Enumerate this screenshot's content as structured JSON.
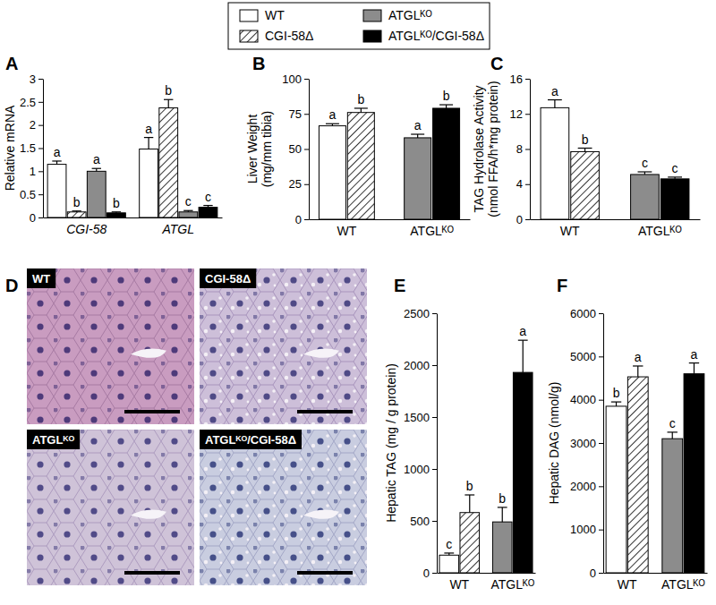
{
  "chart_data": [
    {
      "type": "bar",
      "title": "A",
      "ylabel": "Relative mRNA",
      "categories": [
        "CGI-58",
        "ATGL"
      ],
      "ylim": [
        0,
        3
      ],
      "yticks": [
        0,
        0.5,
        1,
        1.5,
        2,
        2.5,
        3
      ],
      "legend": "top",
      "series": [
        {
          "name": "WT",
          "color": "#ffffff",
          "line_style": "solid",
          "values": [
            1.15,
            1.48
          ],
          "errors": [
            0.07,
            0.25
          ],
          "letters": [
            "a",
            "a"
          ]
        },
        {
          "name": "CGI-58Δ",
          "color": "#ffffff",
          "line_style": "hatched",
          "values": [
            0.12,
            2.37
          ],
          "errors": [
            0.02,
            0.18
          ],
          "letters": [
            "b",
            "b"
          ]
        },
        {
          "name": "ATGLᴷᴼ",
          "color": "#8c8c8c",
          "line_style": "solid",
          "values": [
            1.0,
            0.12
          ],
          "errors": [
            0.06,
            0.03
          ],
          "letters": [
            "a",
            "c"
          ]
        },
        {
          "name": "ATGLᴷᴼ/CGI-58Δ",
          "color": "#000000",
          "line_style": "solid",
          "values": [
            0.1,
            0.22
          ],
          "errors": [
            0.02,
            0.04
          ],
          "letters": [
            "b",
            "c"
          ]
        }
      ]
    },
    {
      "type": "bar",
      "title": "B",
      "ylabel": [
        "Liver Weight",
        "(mg/mm tibia)"
      ],
      "categories": [
        "WT",
        "ATGLᴷᴼ"
      ],
      "ylim": [
        0,
        100
      ],
      "yticks": [
        0,
        25,
        50,
        75,
        100
      ],
      "series": [
        {
          "name": "WT",
          "color": "#ffffff",
          "line_style": "solid",
          "values": [
            66.5,
            null
          ],
          "errors": [
            1.5,
            null
          ],
          "letters": [
            "a",
            null
          ]
        },
        {
          "name": "CGI-58Δ",
          "color": "#ffffff",
          "line_style": "hatched",
          "values": [
            76,
            null
          ],
          "errors": [
            3,
            null
          ],
          "letters": [
            "b",
            null
          ]
        },
        {
          "name": "ATGLᴷᴼ",
          "color": "#8c8c8c",
          "line_style": "solid",
          "values": [
            null,
            58
          ],
          "errors": [
            null,
            2.5
          ],
          "letters": [
            null,
            "a"
          ]
        },
        {
          "name": "ATGLᴷᴼ/CGI-58Δ",
          "color": "#000000",
          "line_style": "solid",
          "values": [
            null,
            79
          ],
          "errors": [
            null,
            2.5
          ],
          "letters": [
            null,
            "b"
          ]
        }
      ]
    },
    {
      "type": "bar",
      "title": "C",
      "ylabel": [
        "TAG Hydrolase Activity",
        "(nmol FFA/h*mg protein)"
      ],
      "categories": [
        "WT",
        "ATGLᴷᴼ"
      ],
      "ylim": [
        0,
        16
      ],
      "yticks": [
        0,
        4,
        8,
        12,
        16
      ],
      "series": [
        {
          "name": "WT",
          "color": "#ffffff",
          "line_style": "solid",
          "values": [
            12.7,
            null
          ],
          "errors": [
            0.9,
            null
          ],
          "letters": [
            "a",
            null
          ]
        },
        {
          "name": "CGI-58Δ",
          "color": "#ffffff",
          "line_style": "hatched",
          "values": [
            7.7,
            null
          ],
          "errors": [
            0.4,
            null
          ],
          "letters": [
            "b",
            null
          ]
        },
        {
          "name": "ATGLᴷᴼ",
          "color": "#8c8c8c",
          "line_style": "solid",
          "values": [
            null,
            5.1
          ],
          "errors": [
            null,
            0.3
          ],
          "letters": [
            null,
            "c"
          ]
        },
        {
          "name": "ATGLᴷᴼ/CGI-58Δ",
          "color": "#000000",
          "line_style": "solid",
          "values": [
            null,
            4.6
          ],
          "errors": [
            null,
            0.2
          ],
          "letters": [
            null,
            "c"
          ]
        }
      ]
    },
    {
      "type": "bar",
      "title": "E",
      "ylabel": "Hepatic TAG (mg / g protein)",
      "categories": [
        "WT",
        "ATGLᴷᴼ"
      ],
      "ylim": [
        0,
        2500
      ],
      "yticks": [
        0,
        500,
        1000,
        1500,
        2000,
        2500
      ],
      "series": [
        {
          "name": "WT",
          "color": "#ffffff",
          "line_style": "solid",
          "values": [
            170,
            null
          ],
          "errors": [
            20,
            null
          ],
          "letters": [
            "c",
            null
          ]
        },
        {
          "name": "CGI-58Δ",
          "color": "#ffffff",
          "line_style": "hatched",
          "values": [
            580,
            null
          ],
          "errors": [
            170,
            null
          ],
          "letters": [
            "b",
            null
          ]
        },
        {
          "name": "ATGLᴷᴼ",
          "color": "#8c8c8c",
          "line_style": "solid",
          "values": [
            null,
            490
          ],
          "errors": [
            null,
            140
          ],
          "letters": [
            null,
            "b"
          ]
        },
        {
          "name": "ATGLᴷᴼ/CGI-58Δ",
          "color": "#000000",
          "line_style": "solid",
          "values": [
            null,
            1930
          ],
          "errors": [
            null,
            310
          ],
          "letters": [
            null,
            "a"
          ]
        }
      ]
    },
    {
      "type": "bar",
      "title": "F",
      "ylabel": "Hepatic DAG (nmol/g)",
      "categories": [
        "WT",
        "ATGLᴷᴼ"
      ],
      "ylim": [
        0,
        6000
      ],
      "yticks": [
        0,
        1000,
        2000,
        3000,
        4000,
        5000,
        6000
      ],
      "series": [
        {
          "name": "WT",
          "color": "#ffffff",
          "line_style": "solid",
          "values": [
            3850,
            null
          ],
          "errors": [
            100,
            null
          ],
          "letters": [
            "b",
            null
          ]
        },
        {
          "name": "CGI-58Δ",
          "color": "#ffffff",
          "line_style": "hatched",
          "values": [
            4530,
            null
          ],
          "errors": [
            250,
            null
          ],
          "letters": [
            "a",
            null
          ]
        },
        {
          "name": "ATGLᴷᴼ",
          "color": "#8c8c8c",
          "line_style": "solid",
          "values": [
            null,
            3100
          ],
          "errors": [
            null,
            150
          ],
          "letters": [
            null,
            "c"
          ]
        },
        {
          "name": "ATGLᴷᴼ/CGI-58Δ",
          "color": "#000000",
          "line_style": "solid",
          "values": [
            null,
            4600
          ],
          "errors": [
            null,
            250
          ],
          "letters": [
            null,
            "a"
          ]
        }
      ]
    }
  ],
  "panel_d": {
    "title": "D",
    "images": [
      {
        "label": "WT"
      },
      {
        "label": "CGI-58Δ"
      },
      {
        "label": "ATGLᴷᴼ"
      },
      {
        "label": "ATGLᴷᴼ/CGI-58Δ"
      }
    ]
  }
}
